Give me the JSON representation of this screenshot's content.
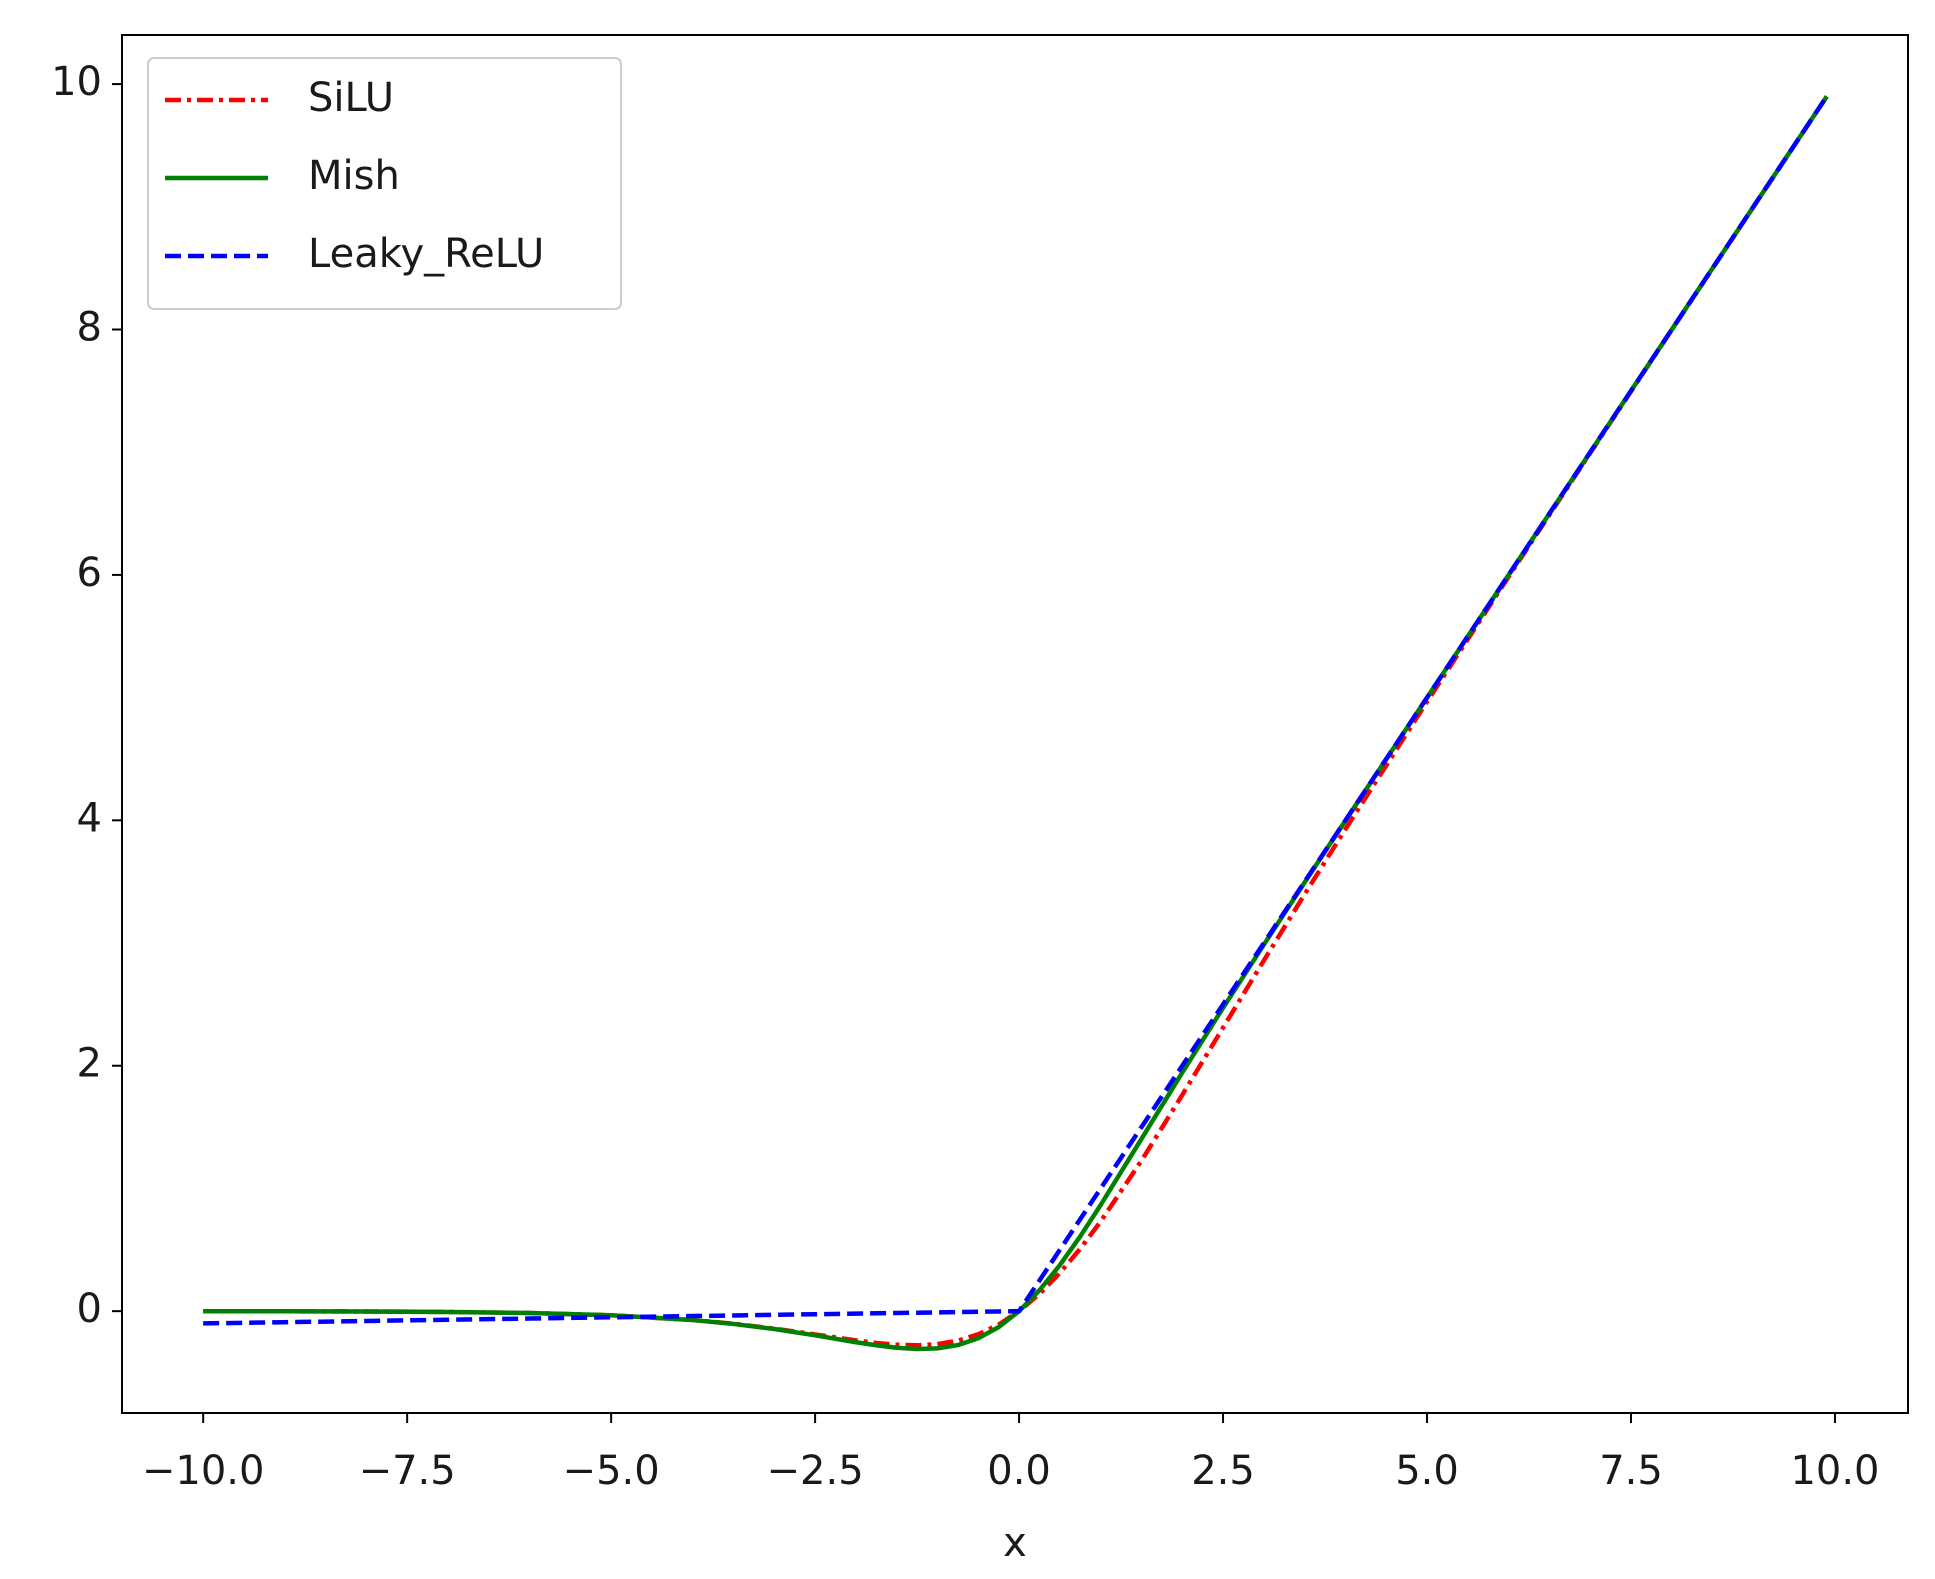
{
  "chart_data": {
    "type": "line",
    "x_label": "x",
    "x": [
      -10,
      -9,
      -8,
      -7,
      -6,
      -5,
      -4,
      -3.5,
      -3,
      -2.5,
      -2,
      -1.75,
      -1.5,
      -1.25,
      -1,
      -0.75,
      -0.5,
      -0.25,
      0,
      0.25,
      0.5,
      0.75,
      1,
      1.5,
      2,
      2.5,
      3,
      3.5,
      4,
      5,
      6,
      7,
      8,
      9,
      9.9
    ],
    "series": [
      {
        "name": "SiLU",
        "color": "#ff0000",
        "linestyle": "-.",
        "values": [
          -0.00045,
          -0.0011,
          -0.0027,
          -0.0064,
          -0.0148,
          -0.0335,
          -0.0719,
          -0.1026,
          -0.1423,
          -0.1896,
          -0.2384,
          -0.2591,
          -0.2736,
          -0.2784,
          -0.2689,
          -0.2406,
          -0.1888,
          -0.1095,
          0,
          0.1405,
          0.3112,
          0.5094,
          0.7311,
          1.2264,
          1.7616,
          2.3104,
          2.8577,
          3.3974,
          3.9281,
          4.9665,
          5.9852,
          6.9936,
          7.9973,
          8.9989,
          9.8995
        ]
      },
      {
        "name": "Mish",
        "color": "#008000",
        "linestyle": "-",
        "values": [
          -0.00045,
          -0.0011,
          -0.0027,
          -0.0064,
          -0.0149,
          -0.0336,
          -0.0726,
          -0.1041,
          -0.1456,
          -0.1968,
          -0.2533,
          -0.278,
          -0.2981,
          -0.3084,
          -0.3034,
          -0.2765,
          -0.2207,
          -0.1299,
          0,
          0.1696,
          0.3752,
          0.61,
          0.8651,
          1.4034,
          1.944,
          2.4714,
          2.9865,
          3.494,
          3.9974,
          4.9996,
          5.9999,
          7,
          8,
          9,
          9.9
        ]
      },
      {
        "name": "Leaky_ReLU",
        "color": "#0000ff",
        "linestyle": "--",
        "values": [
          -0.1,
          -0.09,
          -0.08,
          -0.07,
          -0.06,
          -0.05,
          -0.04,
          -0.035,
          -0.03,
          -0.025,
          -0.02,
          -0.0175,
          -0.015,
          -0.0125,
          -0.01,
          -0.0075,
          -0.005,
          -0.0025,
          0,
          0.25,
          0.5,
          0.75,
          1,
          1.5,
          2,
          2.5,
          3,
          3.5,
          4,
          5,
          6,
          7,
          8,
          9,
          9.9
        ]
      }
    ],
    "xlim": [
      -10.995,
      10.895
    ],
    "ylim": [
      -0.83,
      10.4
    ],
    "xticks": [
      {
        "value": -10,
        "label": "−10.0"
      },
      {
        "value": -7.5,
        "label": "−7.5"
      },
      {
        "value": -5,
        "label": "−5.0"
      },
      {
        "value": -2.5,
        "label": "−2.5"
      },
      {
        "value": 0,
        "label": "0.0"
      },
      {
        "value": 2.5,
        "label": "2.5"
      },
      {
        "value": 5,
        "label": "5.0"
      },
      {
        "value": 7.5,
        "label": "7.5"
      },
      {
        "value": 10,
        "label": "10.0"
      }
    ],
    "yticks": [
      0,
      2,
      4,
      6,
      8,
      10
    ],
    "grid": false,
    "legend": "upper left"
  }
}
